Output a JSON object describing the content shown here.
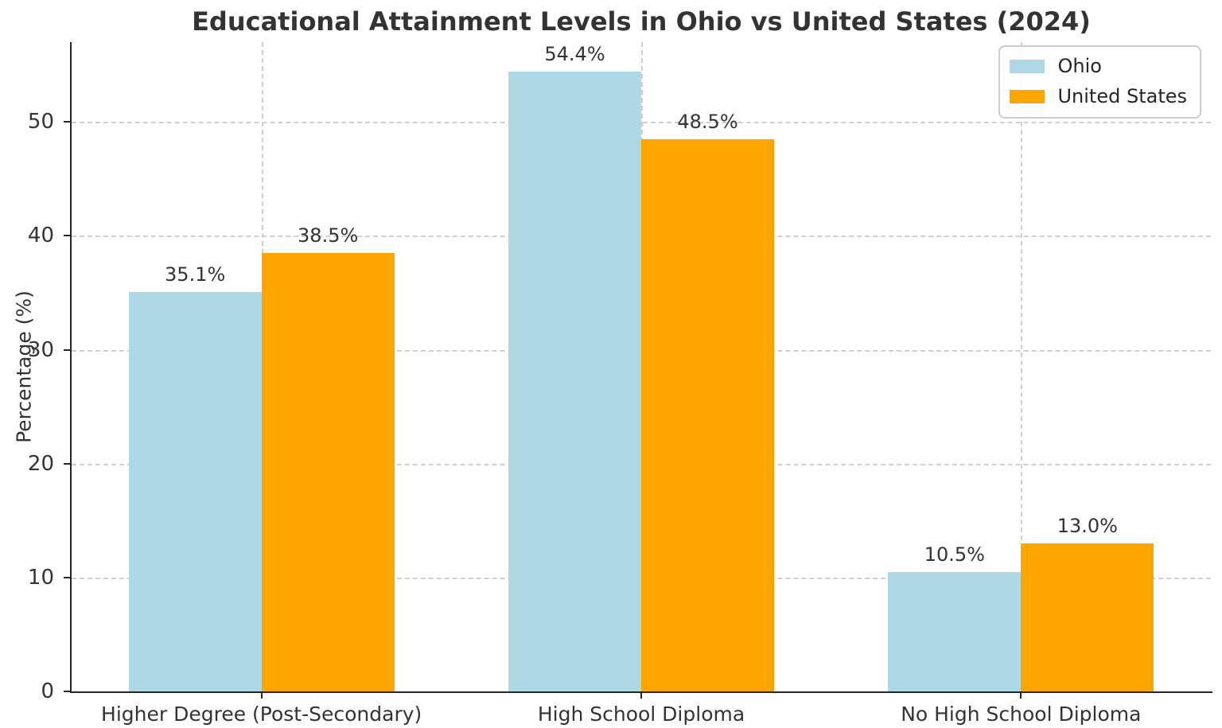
{
  "chart_data": {
    "type": "bar",
    "title": "Educational Attainment Levels in Ohio vs United States (2024)",
    "categories": [
      "Higher Degree (Post-Secondary)",
      "High School Diploma",
      "No High School Diploma"
    ],
    "series": [
      {
        "name": "Ohio",
        "color": "#ADD8E6",
        "values": [
          35.1,
          54.4,
          10.5
        ]
      },
      {
        "name": "United States",
        "color": "#FFA500",
        "values": [
          38.5,
          48.5,
          13.0
        ]
      }
    ],
    "value_label_suffix": "%",
    "xlabel": "",
    "ylabel": "Percentage (%)",
    "yticks": [
      0,
      10,
      20,
      30,
      40,
      50
    ],
    "ylim": [
      0,
      57
    ],
    "grid": {
      "visible": true,
      "style": "dashed",
      "color": "#cfcfcf"
    },
    "legend": {
      "position": "upper-right",
      "entries": [
        "Ohio",
        "United States"
      ]
    },
    "bar_width_fraction": 0.35,
    "colors": {
      "text": "#333333",
      "axis": "#262626",
      "background": "#ffffff"
    }
  }
}
